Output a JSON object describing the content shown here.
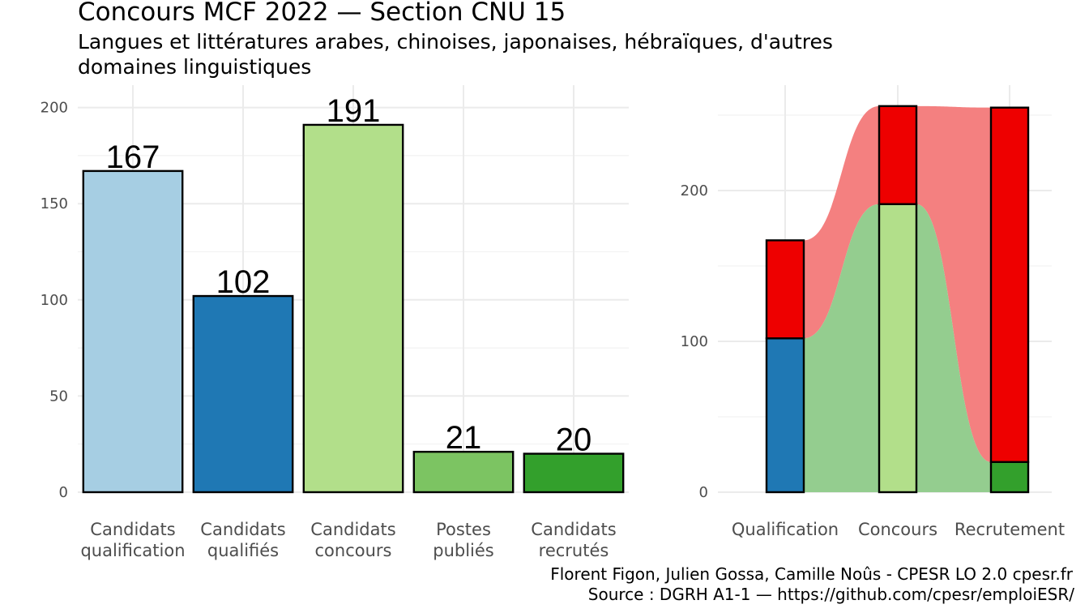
{
  "title": "Concours MCF  2022  —  Section CNU 15",
  "subtitle_lines": [
    "Langues et littératures arabes, chinoises, japonaises, hébraïques, d'autres",
    "domaines linguistiques"
  ],
  "caption_lines": [
    "Florent Figon, Julien Gossa, Camille Noûs - CPESR LO 2.0 cpesr.fr",
    "Source : DGRH A1-1 — https://github.com/cpesr/emploiESR/"
  ],
  "chart_data": [
    {
      "type": "bar",
      "categories": [
        [
          "Candidats",
          "qualification"
        ],
        [
          "Candidats",
          "qualifiés"
        ],
        [
          "Candidats",
          "concours"
        ],
        [
          "Postes",
          "publiés"
        ],
        [
          "Candidats",
          "recrutés"
        ]
      ],
      "values": [
        167,
        102,
        191,
        21,
        20
      ],
      "colors": [
        "#a6cee3",
        "#1f78b4",
        "#b2df8a",
        "#7cc462",
        "#33a02c"
      ],
      "yticks": [
        0,
        50,
        100,
        150,
        200
      ],
      "ylim": [
        0,
        200
      ],
      "grid": true
    },
    {
      "type": "bar",
      "subtype": "stacked-alluvial",
      "categories": [
        "Qualification",
        "Concours",
        "Recrutement"
      ],
      "series": [
        {
          "values": [
            102,
            191,
            20
          ],
          "colors": [
            "#1f78b4",
            "#b2df8a",
            "#33a02c"
          ]
        },
        {
          "values": [
            65,
            65,
            235
          ],
          "colors": [
            "#ee0000",
            "#ee0000",
            "#ee0000"
          ]
        }
      ],
      "flow_colors": {
        "success": "#94cd8f",
        "fail": "#f48080"
      },
      "yticks": [
        0,
        100,
        200
      ],
      "grid": true
    }
  ]
}
